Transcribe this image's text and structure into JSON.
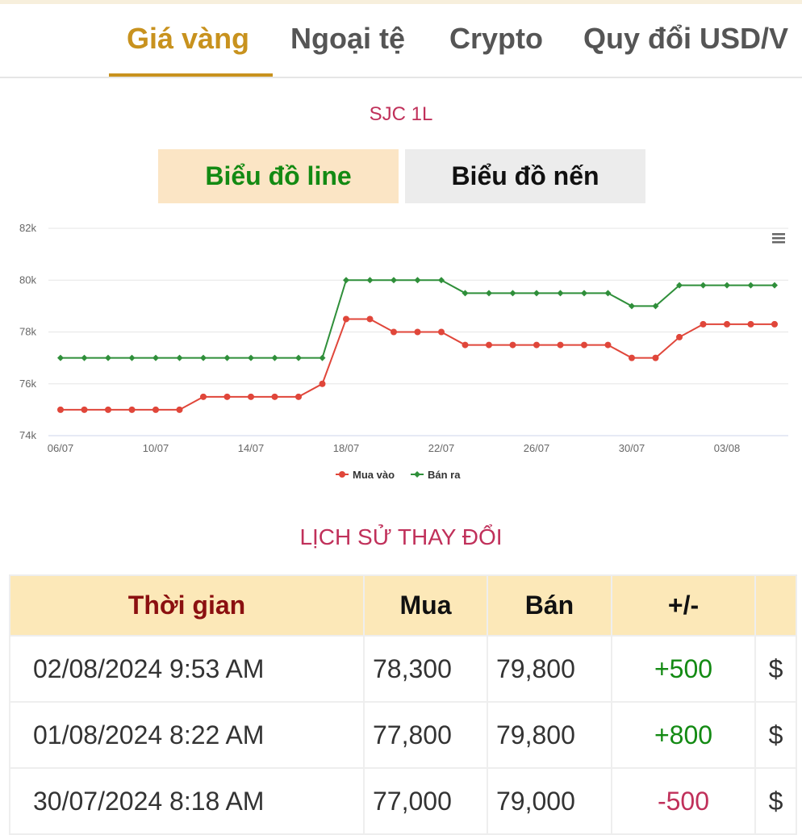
{
  "tabs": [
    "Giá vàng",
    "Ngoại tệ",
    "Crypto",
    "Quy đổi USD/V"
  ],
  "subtitle": "SJC 1L",
  "chart_buttons": [
    "Biểu đồ line",
    "Biểu đồ nến"
  ],
  "chart_data": {
    "type": "line",
    "categories": [
      "06/07",
      null,
      null,
      null,
      "10/07",
      null,
      null,
      null,
      "14/07",
      null,
      null,
      null,
      "18/07",
      null,
      null,
      null,
      "22/07",
      null,
      null,
      null,
      "26/07",
      null,
      null,
      null,
      "30/07",
      null,
      null,
      null,
      "03/08",
      null,
      null
    ],
    "series": [
      {
        "name": "Mua vào",
        "color": "#e0463a",
        "marker": "circle",
        "values": [
          75,
          75,
          75,
          75,
          75,
          75,
          75.5,
          75.5,
          75.5,
          75.5,
          75.5,
          76,
          78.5,
          78.5,
          78,
          78,
          78,
          77.5,
          77.5,
          77.5,
          77.5,
          77.5,
          77.5,
          77.5,
          77,
          77,
          77.8,
          78.3,
          78.3,
          78.3,
          78.3
        ]
      },
      {
        "name": "Bán ra",
        "color": "#2f8f3a",
        "marker": "diamond",
        "values": [
          77,
          77,
          77,
          77,
          77,
          77,
          77,
          77,
          77,
          77,
          77,
          77,
          80,
          80,
          80,
          80,
          80,
          79.5,
          79.5,
          79.5,
          79.5,
          79.5,
          79.5,
          79.5,
          79,
          79,
          79.8,
          79.8,
          79.8,
          79.8,
          79.8
        ]
      }
    ],
    "ylim": [
      74,
      82
    ],
    "yticks": [
      {
        "value": 74,
        "label": "74k"
      },
      {
        "value": 76,
        "label": "76k"
      },
      {
        "value": 78,
        "label": "78k"
      },
      {
        "value": 80,
        "label": "80k"
      },
      {
        "value": 82,
        "label": "82k"
      }
    ],
    "grid": true,
    "legend": "bottom"
  },
  "history": {
    "title": "LỊCH SỬ THAY ĐỔI",
    "table": {
      "header": [
        "Thời gian",
        "Mua",
        "Bán",
        "+/-",
        ""
      ],
      "rows": [
        [
          "02/08/2024 9:53 AM",
          "78,300",
          "79,800",
          "+500",
          "$"
        ],
        [
          "01/08/2024 8:22 AM",
          "77,800",
          "79,800",
          "+800",
          "$"
        ],
        [
          "30/07/2024 8:18 AM",
          "77,000",
          "79,000",
          "-500",
          "$"
        ]
      ]
    }
  }
}
